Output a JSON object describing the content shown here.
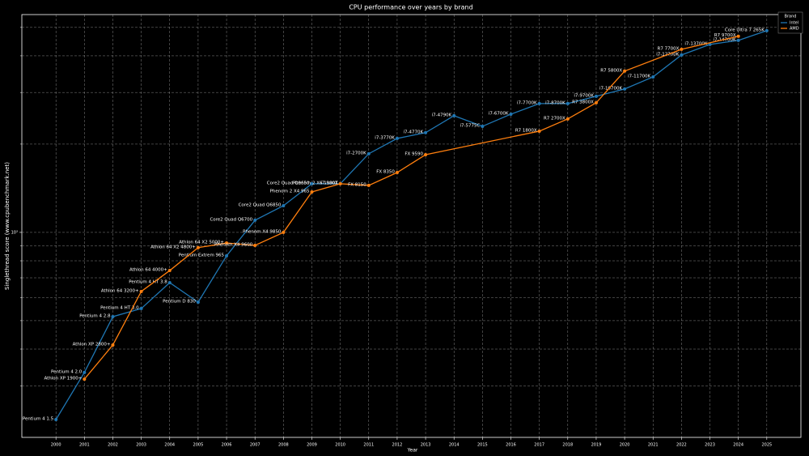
{
  "chart_data": {
    "type": "line",
    "title": "CPU performance over years by brand",
    "xlabel": "Year",
    "ylabel": "Singlethread score (www.cpubenchmark.net)",
    "yscale": "log",
    "grid": true,
    "xlim": [
      1998.8,
      2026.2
    ],
    "xticks": [
      2000,
      2001,
      2002,
      2003,
      2004,
      2005,
      2006,
      2007,
      2008,
      2009,
      2010,
      2011,
      2012,
      2013,
      2014,
      2015,
      2016,
      2017,
      2018,
      2019,
      2020,
      2021,
      2022,
      2023,
      2024,
      2025
    ],
    "ylim": [
      200,
      5530
    ],
    "yticks": [
      {
        "value": 1000,
        "label": "10³"
      }
    ],
    "y_minor_ticks": [
      300,
      400,
      500,
      600,
      700,
      800,
      900,
      2000,
      3000,
      4000,
      5000
    ],
    "legend_title": "Brand",
    "legend_position": "upper right",
    "series": [
      {
        "name": "Intel",
        "color": "#1f77b4",
        "x": [
          2000,
          2001,
          2002,
          2003,
          2004,
          2005,
          2006,
          2007,
          2008,
          2009,
          2010,
          2011,
          2012,
          2013,
          2014,
          2015,
          2016,
          2017,
          2018,
          2019,
          2020,
          2021,
          2022,
          2023,
          2024,
          2025
        ],
        "values": [
          230,
          333,
          516,
          550,
          674,
          578,
          832,
          1100,
          1233,
          1465,
          1465,
          1854,
          2091,
          2188,
          2500,
          2300,
          2530,
          2750,
          2750,
          2911,
          3083,
          3390,
          4027,
          4375,
          4515,
          4875
        ],
        "labels": [
          "Pentium 4 1.5",
          "Pentium 4 2.0",
          "Pentium 4 2.8",
          "Pentium 4 HT 3.0",
          "Pentium 4 HT 3.8",
          "Pentium D 830",
          "Pentium Extrem 965",
          "Core2 Quad Q6700",
          "Core2 Quad Q6850",
          "Core2 Quad Q9650",
          "i7-980X",
          "i7-2700K",
          "i7-3770K",
          "i7-4770K",
          "i7-4790K",
          "i7-5775C",
          "i7-6700K",
          "i7-7700K",
          "i7-8700K",
          "i7-9700K",
          "i7-10700K",
          "i7-11700K",
          "i7-12700K",
          "i7-13700K",
          "i7-14700K",
          "Core Ultra 7 265K"
        ]
      },
      {
        "name": "AMD",
        "color": "#ff7f0e",
        "x": [
          2001,
          2002,
          2003,
          2004,
          2005,
          2006,
          2007,
          2008,
          2009,
          2010,
          2011,
          2012,
          2013,
          2017,
          2018,
          2019,
          2020,
          2022,
          2024
        ],
        "values": [
          316,
          413,
          629,
          741,
          887,
          920,
          903,
          1000,
          1374,
          1465,
          1446,
          1600,
          1841,
          2214,
          2437,
          2767,
          3548,
          4210,
          4665
        ],
        "labels": [
          "Athlon XP 1900+",
          "Athlon XP 2800+",
          "Athlon 64 3200+",
          "Athlon 64 4000+",
          "Athlon 64 X2 4800+",
          "Athlon 64 X2 5000+",
          "Phenom X4 9600",
          "Phenom X4 9850",
          "Phenom 2 X4 965",
          "Phenom 2 X6 1100T",
          "FX 8150",
          "FX 8350",
          "FX 9590",
          "R7 1800X",
          "R7 2700X",
          "R7 3800X",
          "R7 5800X",
          "R7 7700X",
          "R7 9700X"
        ]
      }
    ]
  }
}
